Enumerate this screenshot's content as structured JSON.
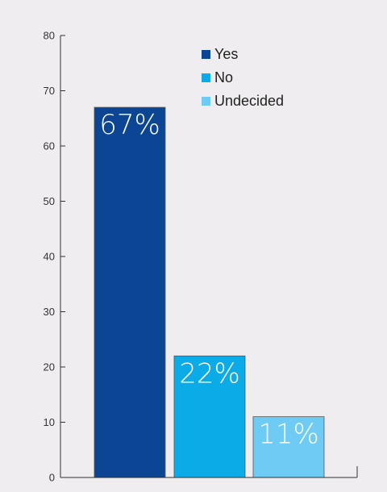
{
  "chart_data": {
    "type": "bar",
    "title": "",
    "xlabel": "",
    "ylabel": "",
    "ylim": [
      0,
      80
    ],
    "yticks": [
      0,
      10,
      20,
      30,
      40,
      50,
      60,
      70,
      80
    ],
    "grid": false,
    "legend_position": "top-right",
    "categories": [
      "Yes",
      "No",
      "Undecided"
    ],
    "values": [
      67,
      22,
      11
    ],
    "data_labels": [
      "67%",
      "22%",
      "11%"
    ],
    "colors": [
      "#0b4593",
      "#0aabe6",
      "#6ecbf3"
    ]
  }
}
